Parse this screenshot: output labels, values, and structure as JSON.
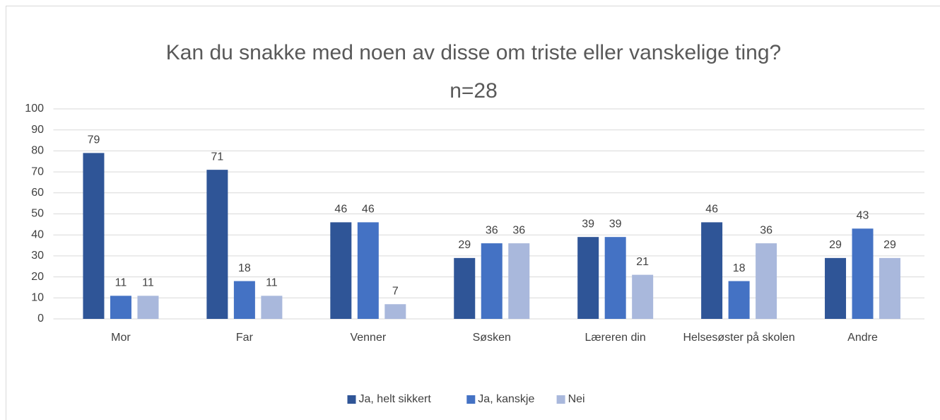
{
  "chart_data": {
    "type": "bar",
    "title": "Kan du snakke med noen av disse om triste eller vanskelige ting?",
    "subtitle": "n=28",
    "categories": [
      "Mor",
      "Far",
      "Venner",
      "Søsken",
      "Læreren din",
      "Helsesøster på skolen",
      "Andre"
    ],
    "series": [
      {
        "name": "Ja, helt sikkert",
        "color": "#2f5597",
        "values": [
          79,
          71,
          46,
          29,
          39,
          46,
          29
        ]
      },
      {
        "name": "Ja, kanskje",
        "color": "#4472c4",
        "values": [
          11,
          18,
          46,
          36,
          39,
          18,
          43
        ]
      },
      {
        "name": "Nei",
        "color": "#a9b8dc",
        "values": [
          11,
          11,
          7,
          36,
          21,
          36,
          29
        ]
      }
    ],
    "ylim": [
      0,
      100
    ],
    "yticks": [
      0,
      10,
      20,
      30,
      40,
      50,
      60,
      70,
      80,
      90,
      100
    ],
    "grid": true,
    "legend": "bottom"
  }
}
